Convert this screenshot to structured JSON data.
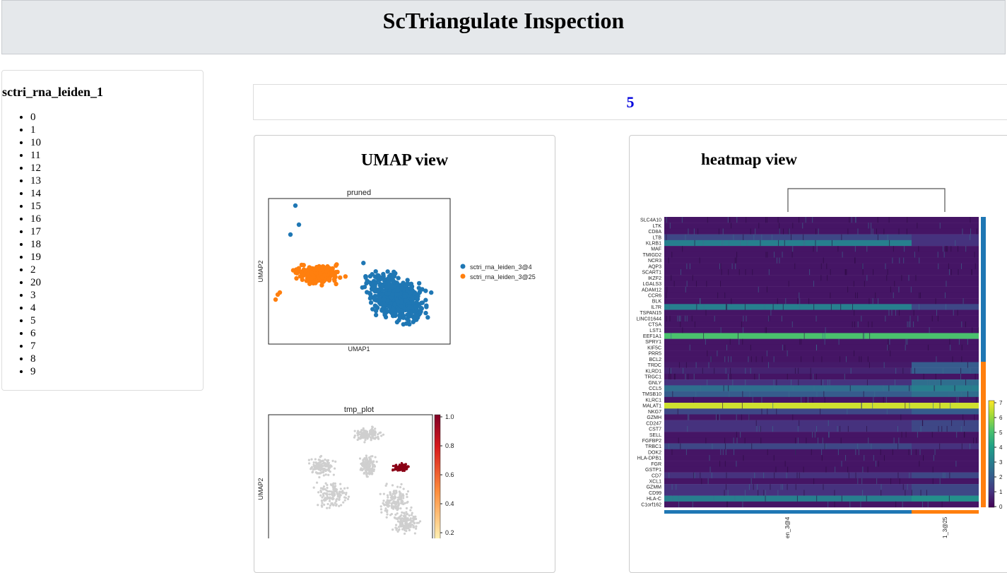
{
  "header": {
    "title": "ScTriangulate Inspection"
  },
  "sidebar": {
    "title": "sctri_rna_leiden_1",
    "items": [
      "0",
      "1",
      "10",
      "11",
      "12",
      "13",
      "14",
      "15",
      "16",
      "17",
      "18",
      "19",
      "2",
      "20",
      "3",
      "4",
      "5",
      "6",
      "7",
      "8",
      "9"
    ]
  },
  "selected": "5",
  "umap_panel": {
    "title": "UMAP view",
    "plot1": {
      "title": "pruned",
      "xlabel": "UMAP1",
      "ylabel": "UMAP2",
      "legend": [
        "sctri_rna_leiden_3@4",
        "sctri_rna_leiden_3@25"
      ]
    },
    "plot2": {
      "title": "tmp_plot",
      "ylabel": "UMAP2",
      "colorbar_ticks": [
        "1.0",
        "0.8",
        "0.6",
        "0.4",
        "0.2"
      ]
    }
  },
  "heatmap_panel": {
    "title": "heatmap view",
    "genes": [
      "SLC4A10",
      "LTK",
      "CD8A",
      "LTB",
      "KLRB1",
      "MAF",
      "TMIGD2",
      "NCR3",
      "AQP3",
      "SCART1",
      "IKZF2",
      "LGALS3",
      "ADAM12",
      "CCR6",
      "BLK",
      "IL7R",
      "TSPAN15",
      "LINC01644",
      "CTSA",
      "LST1",
      "EEF1A1",
      "SPRY1",
      "KIF5C",
      "PRR5",
      "BCL2",
      "TRDC",
      "KLRD1",
      "TRGC1",
      "GNLY",
      "CCL5",
      "TMSB10",
      "KLRC1",
      "MALAT1",
      "NKG7",
      "GZMH",
      "CD247",
      "CST7",
      "SELL",
      "FGFBP2",
      "TRBC1",
      "DOK2",
      "HLA-DPB1",
      "FGR",
      "GSTP1",
      "CD7",
      "XCL1",
      "GZMM",
      "CD99",
      "HLA-C",
      "C1orf162"
    ],
    "colorbar_ticks": [
      "7",
      "6",
      "5",
      "4",
      "3",
      "2",
      "1",
      "0"
    ],
    "group_labels": [
      "en_3@4",
      "1_3@25"
    ]
  }
}
